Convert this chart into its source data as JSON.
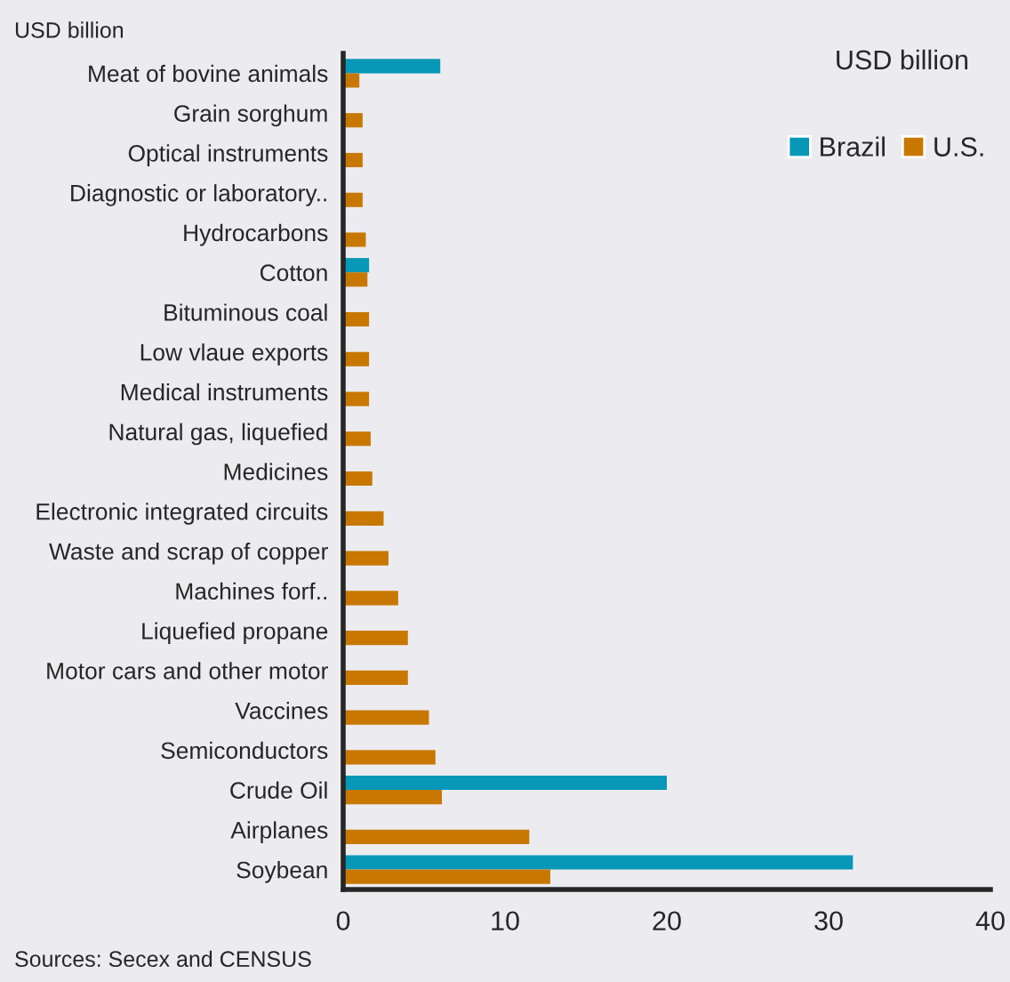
{
  "chart_data": {
    "type": "bar",
    "orientation": "horizontal",
    "ylabel": "USD billion",
    "categories": [
      "Meat of bovine animals",
      "Grain sorghum",
      "Optical instruments",
      "Diagnostic or laboratory..",
      "Hydrocarbons",
      "Cotton",
      "Bituminous coal",
      "Low vlaue exports",
      "Medical instruments",
      "Natural gas, liquefied",
      "Medicines",
      "Electronic integrated circuits",
      "Waste and scrap of copper",
      "Machines forf..",
      "Liquefied propane",
      "Motor cars and other motor",
      "Vaccines",
      "Semiconductors",
      "Crude Oil",
      "Airplanes",
      "Soybean"
    ],
    "series": [
      {
        "name": "Brazil",
        "color": "#0798b8",
        "values": [
          6.0,
          null,
          null,
          null,
          null,
          1.6,
          null,
          null,
          null,
          null,
          null,
          null,
          null,
          null,
          null,
          null,
          null,
          null,
          20.0,
          null,
          31.5
        ]
      },
      {
        "name": "U.S.",
        "color": "#c87800",
        "values": [
          1.0,
          1.2,
          1.2,
          1.2,
          1.4,
          1.5,
          1.6,
          1.6,
          1.6,
          1.7,
          1.8,
          2.5,
          2.8,
          3.4,
          4.0,
          4.0,
          5.3,
          5.7,
          6.1,
          11.5,
          12.8
        ]
      }
    ],
    "xlim": [
      0,
      40
    ],
    "xticks": [
      0,
      10,
      20,
      30,
      40
    ],
    "grid": false,
    "legend": "top right",
    "annotations": [
      "USD billion",
      "Sources: Secex and CENSUS"
    ]
  }
}
